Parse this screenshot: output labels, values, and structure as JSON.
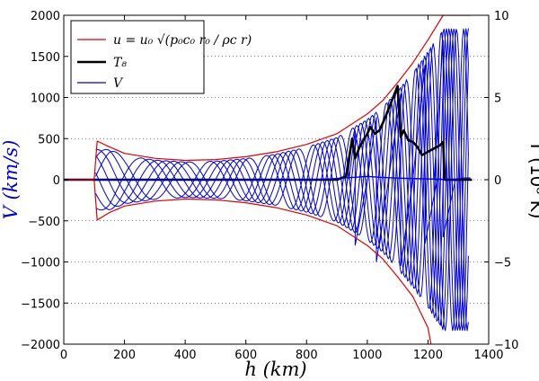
{
  "chart_data": {
    "type": "line",
    "xlabel": "h (km)",
    "ylabel_left": "V (km/s)",
    "ylabel_right": "T (10⁸ K)",
    "xlim": [
      0,
      1400
    ],
    "ylim_left": [
      -2000,
      2000
    ],
    "ylim_right": [
      -10,
      10
    ],
    "x_ticks": [
      "0",
      "200",
      "400",
      "600",
      "800",
      "1000",
      "1200",
      "1400"
    ],
    "y_ticks_left": [
      "−2000",
      "−1500",
      "−1000",
      "−500",
      "0",
      "500",
      "1000",
      "1500",
      "2000"
    ],
    "y_ticks_right": [
      "−10",
      "−5",
      "0",
      "5",
      "10"
    ],
    "grid": "dotted horizontal",
    "legend_position": "top-left",
    "legend": [
      "u = u₀ √(p₀c₀ r₀ / ρc r)",
      "T₈",
      "V"
    ],
    "colors": {
      "envelope": "#dd0000",
      "temperature": "#000000",
      "velocity": "#0000cc"
    },
    "series": [
      {
        "name": "u envelope (+)",
        "axis": "left",
        "x": [
          100,
          110,
          150,
          200,
          300,
          400,
          500,
          600,
          700,
          800,
          900,
          1000,
          1050,
          1100,
          1150,
          1200,
          1250,
          1300,
          1340
        ],
        "y": [
          0,
          470,
          400,
          320,
          260,
          235,
          245,
          280,
          340,
          430,
          560,
          800,
          960,
          1180,
          1420,
          1700,
          2000,
          2000,
          2000
        ]
      },
      {
        "name": "u envelope (−)",
        "axis": "left",
        "x": [
          100,
          110,
          150,
          200,
          300,
          400,
          500,
          600,
          700,
          800,
          900,
          1000,
          1050,
          1100,
          1150,
          1200,
          1210
        ],
        "y": [
          0,
          -490,
          -400,
          -320,
          -260,
          -235,
          -245,
          -280,
          -340,
          -430,
          -560,
          -800,
          -960,
          -1180,
          -1420,
          -1800,
          -2000
        ]
      },
      {
        "name": "T₈",
        "axis": "right",
        "x": [
          0,
          900,
          930,
          935,
          950,
          960,
          975,
          990,
          1000,
          1010,
          1025,
          1040,
          1055,
          1070,
          1085,
          1100,
          1110,
          1120,
          1135,
          1150,
          1165,
          1180,
          1200,
          1220,
          1240,
          1250,
          1255,
          1260,
          1300,
          1345
        ],
        "y": [
          0,
          0,
          0.2,
          0.8,
          2.5,
          1.3,
          2.0,
          2.5,
          2.8,
          3.2,
          2.8,
          3.0,
          3.6,
          4.3,
          5.0,
          5.7,
          2.6,
          3.0,
          2.4,
          2.3,
          2.0,
          1.5,
          1.7,
          1.9,
          2.1,
          2.3,
          0,
          0,
          0,
          0
        ]
      },
      {
        "name": "V (final profile)",
        "axis": "left",
        "x": [
          0,
          100,
          200,
          300,
          400,
          500,
          600,
          700,
          800,
          850,
          880,
          900,
          920,
          940,
          960,
          1000,
          1040,
          1100,
          1140,
          1200,
          1240,
          1280,
          1300,
          1320,
          1340
        ],
        "y": [
          0,
          0,
          0,
          0,
          0,
          0,
          0,
          0,
          0,
          5,
          10,
          15,
          20,
          25,
          30,
          40,
          30,
          20,
          15,
          10,
          5,
          0,
          10,
          20,
          20
        ]
      }
    ]
  }
}
